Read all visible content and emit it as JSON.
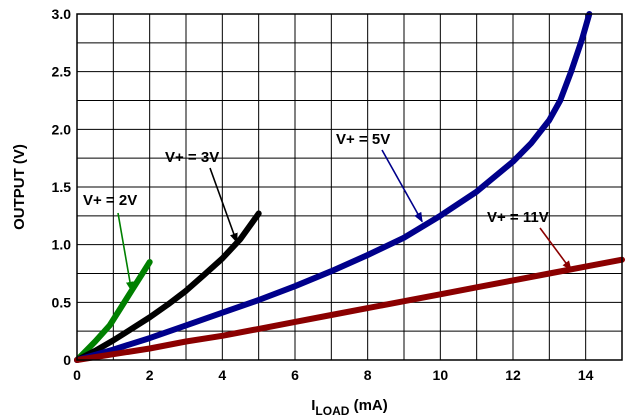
{
  "chart_data": {
    "type": "line",
    "xlabel": {
      "main": "I",
      "sub": "LOAD",
      "unit": " (mA)"
    },
    "ylabel": "OUTPUT (V)",
    "xlim": [
      0,
      15
    ],
    "ylim": [
      0,
      3.0
    ],
    "x_ticks": [
      0,
      2,
      4,
      6,
      8,
      10,
      12,
      14
    ],
    "x_tick_labels": [
      "0",
      "2",
      "4",
      "6",
      "8",
      "10",
      "12",
      "14"
    ],
    "y_ticks": [
      0,
      0.5,
      1.0,
      1.5,
      2.0,
      2.5,
      3.0
    ],
    "y_tick_labels": [
      "0",
      "0.5",
      "1.0",
      "1.5",
      "2.0",
      "2.5",
      "3.0"
    ],
    "grid": true,
    "legend": "none",
    "series": [
      {
        "name": "V+ = 2V",
        "color": "#008000",
        "x": [
          0,
          0.5,
          0.9,
          1.2,
          1.5,
          2.0
        ],
        "y": [
          0,
          0.16,
          0.3,
          0.45,
          0.6,
          0.85
        ]
      },
      {
        "name": "V+ = 3V",
        "color": "#000000",
        "x": [
          0,
          0.5,
          1,
          1.5,
          2,
          2.5,
          3,
          3.5,
          4,
          4.5,
          5.0
        ],
        "y": [
          0,
          0.08,
          0.17,
          0.27,
          0.37,
          0.48,
          0.6,
          0.74,
          0.88,
          1.05,
          1.27
        ]
      },
      {
        "name": "V+ = 5V",
        "color": "#00008b",
        "x": [
          0,
          1,
          2,
          3,
          4,
          5,
          6,
          7,
          8,
          9,
          10,
          11,
          12,
          12.5,
          13,
          13.3,
          13.6,
          13.9,
          14.1
        ],
        "y": [
          0,
          0.09,
          0.19,
          0.3,
          0.41,
          0.52,
          0.64,
          0.77,
          0.91,
          1.06,
          1.25,
          1.46,
          1.72,
          1.88,
          2.08,
          2.25,
          2.5,
          2.78,
          3.0
        ]
      },
      {
        "name": "V+ = 11V",
        "color": "#8b0000",
        "x": [
          0,
          1,
          2,
          3,
          4,
          5,
          6,
          7,
          8,
          9,
          10,
          11,
          12,
          13,
          14,
          15
        ],
        "y": [
          0,
          0.05,
          0.1,
          0.16,
          0.21,
          0.27,
          0.33,
          0.39,
          0.45,
          0.51,
          0.57,
          0.63,
          0.69,
          0.75,
          0.81,
          0.87
        ]
      }
    ],
    "annotations": [
      {
        "text": "V+ = 2V",
        "series": 0,
        "arrow_to": [
          1.5,
          0.6
        ]
      },
      {
        "text": "V+ = 3V",
        "series": 1,
        "arrow_to": [
          4.4,
          1.02
        ]
      },
      {
        "text": "V+ = 5V",
        "series": 2,
        "arrow_to": [
          9.5,
          1.2
        ]
      },
      {
        "text": "V+ = 11V",
        "series": 3,
        "arrow_to": [
          13.6,
          0.78
        ]
      }
    ]
  }
}
